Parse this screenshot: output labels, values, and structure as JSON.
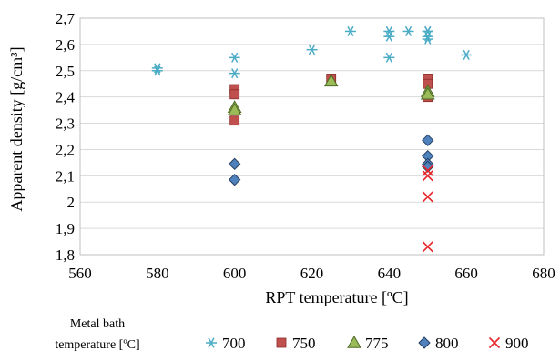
{
  "chart_data": {
    "type": "scatter",
    "title": "",
    "xlabel": "RPT temperature [ºC]",
    "ylabel": "Apparent density [g/cm³]",
    "xlim": [
      560,
      680
    ],
    "ylim": [
      1.8,
      2.7
    ],
    "xticks": [
      560,
      580,
      600,
      620,
      640,
      660,
      680
    ],
    "xtick_labels": [
      "560",
      "580",
      "600",
      "620",
      "640",
      "660",
      "680"
    ],
    "yticks": [
      1.8,
      1.9,
      2.0,
      2.1,
      2.2,
      2.3,
      2.4,
      2.5,
      2.6,
      2.7
    ],
    "ytick_labels": [
      "1,8",
      "1,9",
      "2",
      "2,1",
      "2,2",
      "2,3",
      "2,4",
      "2,5",
      "2,6",
      "2,7"
    ],
    "grid": "horizontal",
    "legend": {
      "title": "Metal bath temperature [ºC]",
      "title_lines": [
        "Metal bath",
        "temperature [ºC]"
      ],
      "position": "bottom"
    },
    "series": [
      {
        "name": "700",
        "marker": "asterisk",
        "color": "#4bacc6",
        "points": [
          [
            580,
            2.5
          ],
          [
            580,
            2.51
          ],
          [
            600,
            2.55
          ],
          [
            600,
            2.49
          ],
          [
            620,
            2.58
          ],
          [
            630,
            2.65
          ],
          [
            640,
            2.65
          ],
          [
            640,
            2.63
          ],
          [
            640,
            2.55
          ],
          [
            645,
            2.65
          ],
          [
            650,
            2.65
          ],
          [
            650,
            2.63
          ],
          [
            650,
            2.62
          ],
          [
            650,
            2.65
          ],
          [
            660,
            2.56
          ]
        ]
      },
      {
        "name": "750",
        "marker": "square",
        "color": "#c0504d",
        "points": [
          [
            600,
            2.43
          ],
          [
            600,
            2.41
          ],
          [
            600,
            2.31
          ],
          [
            625,
            2.47
          ],
          [
            650,
            2.47
          ],
          [
            650,
            2.45
          ],
          [
            650,
            2.4
          ]
        ]
      },
      {
        "name": "775",
        "marker": "triangle",
        "color": "#9bbb59",
        "points": [
          [
            600,
            2.36
          ],
          [
            600,
            2.35
          ],
          [
            625,
            2.46
          ],
          [
            650,
            2.42
          ],
          [
            650,
            2.41
          ]
        ]
      },
      {
        "name": "800",
        "marker": "diamond",
        "color": "#4f81bd",
        "points": [
          [
            600,
            2.145
          ],
          [
            600,
            2.085
          ],
          [
            650,
            2.235
          ],
          [
            650,
            2.175
          ],
          [
            650,
            2.145
          ],
          [
            650,
            2.135
          ]
        ]
      },
      {
        "name": "900",
        "marker": "x",
        "color": "#e8262b",
        "points": [
          [
            650,
            2.12
          ],
          [
            650,
            2.1
          ],
          [
            650,
            2.02
          ],
          [
            650,
            1.83
          ]
        ]
      }
    ]
  }
}
